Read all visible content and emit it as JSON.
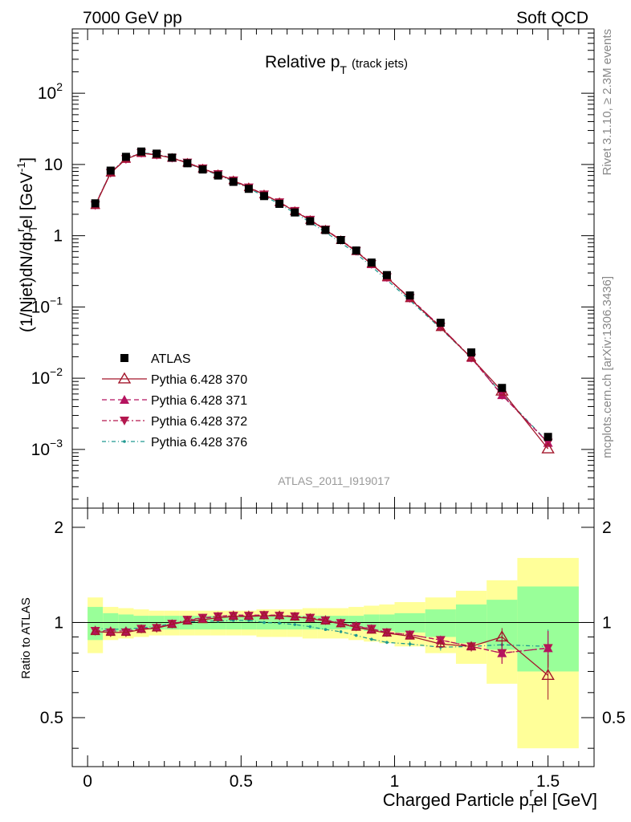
{
  "header": {
    "left": "7000 GeV pp",
    "right": "Soft QCD",
    "title_main": "Relative p",
    "title_sub": "T",
    "title_extra": "(track jets)"
  },
  "side_text": {
    "rivet": "Rivet 3.1.10, ≥ 2.3M events",
    "mcplots": "mcplots.cern.ch [arXiv:1306.3436]"
  },
  "analysis_id": "ATLAS_2011_I919017",
  "axes": {
    "ylabel_main": "(1/Njet)dN/dp",
    "ylabel_sub1": "T",
    "ylabel_sup": "r",
    "ylabel_tail": "el [GeV",
    "ylabel_exp": "-1",
    "ylabel_end": "]",
    "ratio_ylabel": "Ratio to ATLAS",
    "xlabel_main": "Charged Particle p",
    "xlabel_sub": "T",
    "xlabel_sup": "r",
    "xlabel_tail": "el [GeV]"
  },
  "ticks": {
    "x": [
      "0",
      "0.5",
      "1",
      "1.5"
    ],
    "main_y": [
      {
        "v": 0.001,
        "base": "10",
        "exp": "−3"
      },
      {
        "v": 0.01,
        "base": "10",
        "exp": "−2"
      },
      {
        "v": 0.1,
        "base": "10",
        "exp": "−1"
      },
      {
        "v": 1,
        "base": "1",
        "exp": ""
      },
      {
        "v": 10,
        "base": "10",
        "exp": ""
      },
      {
        "v": 100,
        "base": "10",
        "exp": "2"
      }
    ],
    "ratio_y": [
      "0.5",
      "1",
      "2"
    ]
  },
  "legend": [
    "ATLAS",
    "Pythia 6.428 370",
    "Pythia 6.428 371",
    "Pythia 6.428 372",
    "Pythia 6.428 376"
  ],
  "chart_data": {
    "type": "scatter",
    "title": "Relative pT (track jets)",
    "xlabel": "Charged Particle pTrel [GeV]",
    "ylabel": "(1/Njet)dN/dpTrel [GeV-1]",
    "xlim": [
      -0.05,
      1.65
    ],
    "ylim": [
      0.00015,
      800
    ],
    "yscale": "log",
    "ratio_ylim": [
      0.35,
      2.3
    ],
    "x": [
      0.025,
      0.075,
      0.125,
      0.175,
      0.225,
      0.275,
      0.325,
      0.375,
      0.425,
      0.475,
      0.525,
      0.575,
      0.625,
      0.675,
      0.725,
      0.775,
      0.825,
      0.875,
      0.925,
      0.975,
      1.05,
      1.15,
      1.25,
      1.35,
      1.5
    ],
    "band_edges": [
      0.0,
      0.05,
      0.1,
      0.15,
      0.2,
      0.25,
      0.3,
      0.35,
      0.4,
      0.45,
      0.5,
      0.55,
      0.6,
      0.65,
      0.7,
      0.75,
      0.8,
      0.85,
      0.9,
      0.95,
      1.0,
      1.1,
      1.2,
      1.3,
      1.4,
      1.6
    ],
    "band_inner": [
      0.12,
      0.07,
      0.06,
      0.05,
      0.05,
      0.05,
      0.05,
      0.05,
      0.05,
      0.05,
      0.05,
      0.05,
      0.05,
      0.05,
      0.05,
      0.05,
      0.05,
      0.05,
      0.06,
      0.06,
      0.07,
      0.1,
      0.14,
      0.18,
      0.3
    ],
    "band_outer": [
      0.2,
      0.12,
      0.11,
      0.1,
      0.09,
      0.09,
      0.09,
      0.09,
      0.09,
      0.09,
      0.09,
      0.1,
      0.1,
      0.1,
      0.11,
      0.11,
      0.11,
      0.12,
      0.13,
      0.14,
      0.16,
      0.2,
      0.26,
      0.36,
      0.6
    ],
    "series": [
      {
        "name": "ATLAS",
        "values": [
          2.85,
          8.2,
          12.8,
          15.2,
          14.2,
          12.5,
          10.4,
          8.5,
          7.0,
          5.7,
          4.55,
          3.6,
          2.8,
          2.12,
          1.6,
          1.2,
          0.87,
          0.62,
          0.42,
          0.28,
          0.145,
          0.06,
          0.023,
          0.0073,
          0.0015
        ],
        "ratio": [
          1,
          1,
          1,
          1,
          1,
          1,
          1,
          1,
          1,
          1,
          1,
          1,
          1,
          1,
          1,
          1,
          1,
          1,
          1,
          1,
          1,
          1,
          1,
          1,
          1
        ]
      },
      {
        "name": "Pythia 6.428 370",
        "values": [
          2.66,
          7.6,
          11.9,
          14.4,
          13.6,
          12.3,
          10.5,
          8.7,
          7.25,
          5.95,
          4.75,
          3.78,
          2.94,
          2.2,
          1.65,
          1.21,
          0.86,
          0.6,
          0.4,
          0.26,
          0.131,
          0.0513,
          0.0193,
          0.0066,
          0.00102
        ],
        "ratio": [
          0.935,
          0.93,
          0.93,
          0.95,
          0.96,
          0.985,
          1.01,
          1.02,
          1.035,
          1.045,
          1.045,
          1.05,
          1.05,
          1.04,
          1.03,
          1.01,
          0.99,
          0.965,
          0.945,
          0.925,
          0.905,
          0.855,
          0.84,
          0.9,
          0.68
        ]
      },
      {
        "name": "Pythia 6.428 371",
        "values": [
          2.7,
          7.7,
          12.0,
          14.5,
          13.7,
          12.4,
          10.6,
          8.8,
          7.3,
          6.0,
          4.8,
          3.8,
          2.95,
          2.22,
          1.67,
          1.22,
          0.87,
          0.61,
          0.4,
          0.26,
          0.133,
          0.0528,
          0.0193,
          0.0058,
          0.00124
        ],
        "ratio": [
          0.945,
          0.94,
          0.94,
          0.955,
          0.965,
          0.99,
          1.015,
          1.03,
          1.045,
          1.055,
          1.055,
          1.055,
          1.055,
          1.045,
          1.035,
          1.02,
          0.995,
          0.975,
          0.955,
          0.93,
          0.915,
          0.88,
          0.84,
          0.8,
          0.83
        ]
      },
      {
        "name": "Pythia 6.428 372",
        "values": [
          2.68,
          7.6,
          11.9,
          14.5,
          13.6,
          12.4,
          10.6,
          8.8,
          7.3,
          5.95,
          4.75,
          3.78,
          2.94,
          2.22,
          1.67,
          1.22,
          0.87,
          0.61,
          0.4,
          0.26,
          0.133,
          0.0528,
          0.0193,
          0.0058,
          0.00124
        ],
        "ratio": [
          0.94,
          0.93,
          0.93,
          0.955,
          0.96,
          0.99,
          1.02,
          1.035,
          1.045,
          1.05,
          1.05,
          1.055,
          1.05,
          1.045,
          1.035,
          1.015,
          0.995,
          0.97,
          0.955,
          0.93,
          0.915,
          0.88,
          0.84,
          0.8,
          0.83
        ]
      },
      {
        "name": "Pythia 6.428 376",
        "values": [
          2.73,
          7.8,
          12.2,
          14.6,
          13.9,
          12.4,
          10.4,
          8.6,
          7.1,
          5.8,
          4.6,
          3.6,
          2.8,
          2.08,
          1.55,
          1.12,
          0.8,
          0.56,
          0.37,
          0.24,
          0.124,
          0.05,
          0.0193,
          0.006,
          0.00126
        ],
        "ratio": [
          0.96,
          0.95,
          0.955,
          0.96,
          0.975,
          0.99,
          1.005,
          1.01,
          1.01,
          1.015,
          1.015,
          1.0,
          0.995,
          0.985,
          0.97,
          0.95,
          0.935,
          0.91,
          0.885,
          0.865,
          0.855,
          0.835,
          0.84,
          0.85,
          0.84
        ]
      }
    ],
    "ratio_errors": [
      0,
      0,
      0,
      0,
      0,
      0,
      0,
      0,
      0,
      0,
      0,
      0,
      0,
      0,
      0,
      0,
      0,
      0,
      0.01,
      0.01,
      0.015,
      0.02,
      0.03,
      0.06,
      0.11
    ],
    "colors": {
      "data": "#000000",
      "s370": "#a3162b",
      "s371": "#b5135f",
      "s372": "#b3174e",
      "s376": "#1f9990",
      "band_inner": "#99ff99",
      "band_outer": "#ffff99"
    }
  }
}
